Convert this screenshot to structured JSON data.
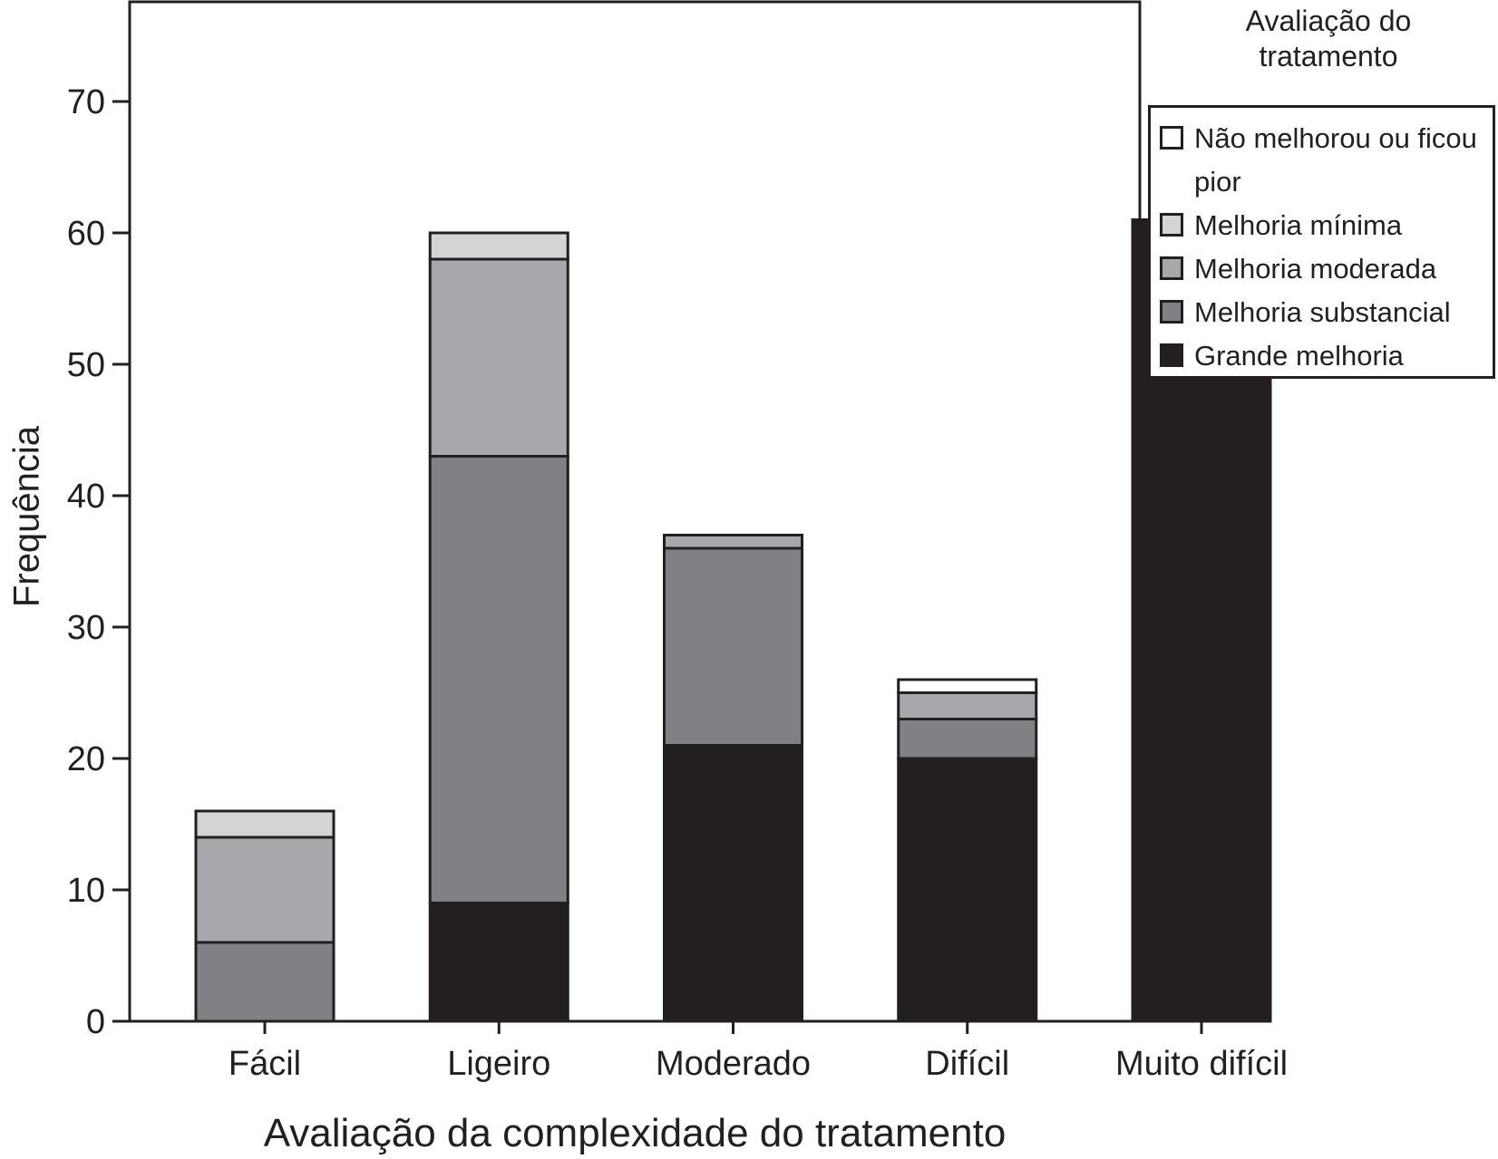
{
  "chart_data": {
    "type": "bar",
    "stacked": true,
    "xlabel": "Avaliação da complexidade do tratamento",
    "ylabel": "Frequência",
    "ylim": [
      0,
      77
    ],
    "yticks": [
      0,
      10,
      20,
      30,
      40,
      50,
      60,
      70
    ],
    "categories": [
      "Fácil",
      "Ligeiro",
      "Moderado",
      "Difícil",
      "Muito difícil"
    ],
    "series": [
      {
        "name": "Grande melhoria",
        "color": "#231f20",
        "values": [
          0,
          9,
          21,
          20,
          61
        ]
      },
      {
        "name": "Melhoria substancial",
        "color": "#808184",
        "values": [
          6,
          34,
          15,
          3,
          0
        ]
      },
      {
        "name": "Melhoria moderada",
        "color": "#a7a8ab",
        "values": [
          8,
          15,
          1,
          2,
          0
        ]
      },
      {
        "name": "Melhoria mínima",
        "color": "#d3d4d6",
        "values": [
          2,
          2,
          0,
          0,
          0
        ]
      },
      {
        "name": "Não melhorou ou ficou pior",
        "color": "#ffffff",
        "values": [
          0,
          0,
          0,
          1,
          0
        ]
      }
    ],
    "legend": {
      "title": "Avaliação do tratamento",
      "placement": "right",
      "items": [
        {
          "label": "Não melhorou ou ficou pior",
          "color": "#ffffff"
        },
        {
          "label": "Melhoria mínima",
          "color": "#d3d4d6"
        },
        {
          "label": "Melhoria moderada",
          "color": "#a7a8ab"
        },
        {
          "label": "Melhoria substancial",
          "color": "#808184"
        },
        {
          "label": "Grande melhoria",
          "color": "#231f20"
        }
      ]
    },
    "grid": false
  }
}
